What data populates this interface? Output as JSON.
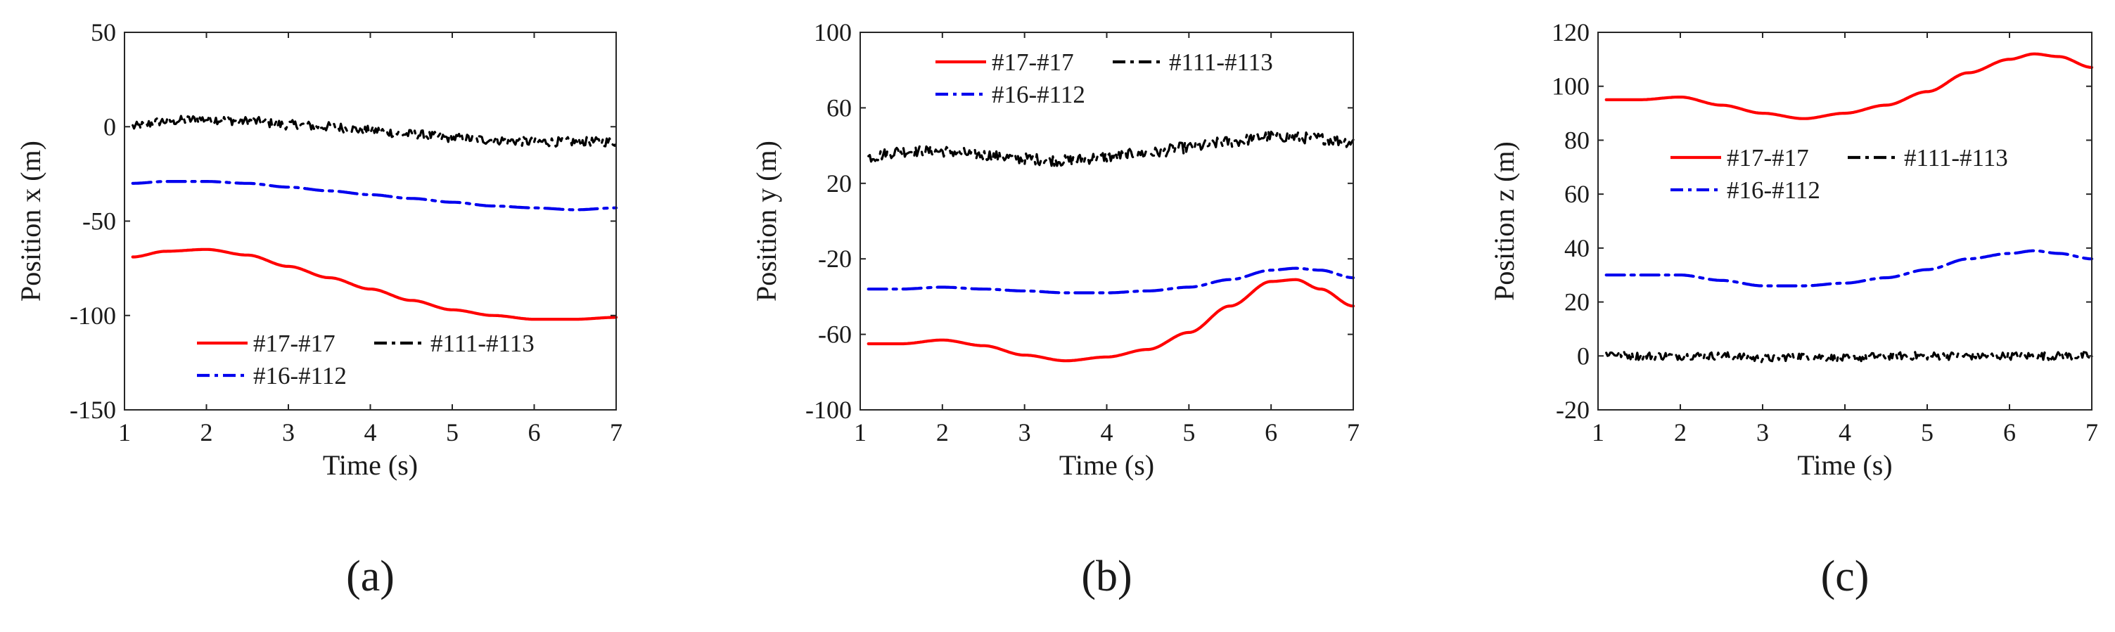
{
  "colors": {
    "red": "#ff0000",
    "black": "#000000",
    "blue": "#0000ee"
  },
  "chart_data": [
    {
      "type": "line",
      "caption": "(a)",
      "xlabel": "Time (s)",
      "ylabel": "Position x (m)",
      "xlim": [
        1,
        7
      ],
      "ylim": [
        -150,
        50
      ],
      "xticks": [
        1,
        2,
        3,
        4,
        5,
        6,
        7
      ],
      "yticks": [
        50,
        0,
        -50,
        -100,
        -150
      ],
      "legend": {
        "placement": "bottom-center",
        "rows": [
          [
            "#17-#17",
            "#111-#113"
          ],
          [
            "#16-#112"
          ]
        ]
      },
      "series": [
        {
          "name": "#17-#17",
          "color": "red",
          "style": "solid",
          "noise": 0,
          "x": [
            1.1,
            1.5,
            2.0,
            2.5,
            3.0,
            3.5,
            4.0,
            4.5,
            5.0,
            5.5,
            6.0,
            6.5,
            7.0
          ],
          "y": [
            -69,
            -66,
            -65,
            -68,
            -74,
            -80,
            -86,
            -92,
            -97,
            -100,
            -102,
            -102,
            -101
          ]
        },
        {
          "name": "#111-#113",
          "color": "black",
          "style": "dashdot",
          "noise": 2.5,
          "x": [
            1.1,
            1.5,
            2.0,
            2.5,
            3.0,
            3.5,
            4.0,
            4.5,
            5.0,
            5.5,
            6.0,
            6.5,
            7.0
          ],
          "y": [
            0,
            3,
            4,
            3,
            1,
            0,
            -2,
            -4,
            -6,
            -7,
            -8,
            -8,
            -8
          ]
        },
        {
          "name": "#16-#112",
          "color": "blue",
          "style": "dashdot",
          "noise": 0,
          "x": [
            1.1,
            1.5,
            2.0,
            2.5,
            3.0,
            3.5,
            4.0,
            4.5,
            5.0,
            5.5,
            6.0,
            6.5,
            7.0
          ],
          "y": [
            -30,
            -29,
            -29,
            -30,
            -32,
            -34,
            -36,
            -38,
            -40,
            -42,
            -43,
            -44,
            -43
          ]
        }
      ]
    },
    {
      "type": "line",
      "caption": "(b)",
      "xlabel": "Time (s)",
      "ylabel": "Position y (m)",
      "xlim": [
        1,
        7
      ],
      "ylim": [
        -100,
        100
      ],
      "xticks": [
        1,
        2,
        3,
        4,
        5,
        6,
        7
      ],
      "yticks": [
        100,
        60,
        20,
        -20,
        -60,
        -100
      ],
      "legend": {
        "placement": "top-center",
        "rows": [
          [
            "#17-#17",
            "#111-#113"
          ],
          [
            "#16-#112"
          ]
        ]
      },
      "series": [
        {
          "name": "#17-#17",
          "color": "red",
          "style": "solid",
          "noise": 0,
          "x": [
            1.1,
            1.5,
            2.0,
            2.5,
            3.0,
            3.5,
            4.0,
            4.5,
            5.0,
            5.5,
            6.0,
            6.3,
            6.6,
            7.0
          ],
          "y": [
            -65,
            -65,
            -63,
            -66,
            -71,
            -74,
            -72,
            -68,
            -59,
            -45,
            -32,
            -31,
            -36,
            -45
          ]
        },
        {
          "name": "#111-#113",
          "color": "black",
          "style": "dashdot",
          "noise": 3,
          "x": [
            1.1,
            1.5,
            2.0,
            2.5,
            3.0,
            3.5,
            4.0,
            4.5,
            5.0,
            5.5,
            6.0,
            6.5,
            7.0
          ],
          "y": [
            34,
            37,
            37,
            35,
            33,
            32,
            34,
            36,
            39,
            42,
            45,
            44,
            42
          ]
        },
        {
          "name": "#16-#112",
          "color": "blue",
          "style": "dashdot",
          "noise": 0,
          "x": [
            1.1,
            1.5,
            2.0,
            2.5,
            3.0,
            3.5,
            4.0,
            4.5,
            5.0,
            5.5,
            6.0,
            6.3,
            6.6,
            7.0
          ],
          "y": [
            -36,
            -36,
            -35,
            -36,
            -37,
            -38,
            -38,
            -37,
            -35,
            -31,
            -26,
            -25,
            -26,
            -30
          ]
        }
      ]
    },
    {
      "type": "line",
      "caption": "(c)",
      "xlabel": "Time (s)",
      "ylabel": "Position z (m)",
      "xlim": [
        1,
        7
      ],
      "ylim": [
        -20,
        120
      ],
      "xticks": [
        1,
        2,
        3,
        4,
        5,
        6,
        7
      ],
      "yticks": [
        120,
        100,
        80,
        60,
        40,
        20,
        0,
        -20
      ],
      "legend": {
        "placement": "center",
        "rows": [
          [
            "#17-#17",
            "#111-#113"
          ],
          [
            "#16-#112"
          ]
        ]
      },
      "series": [
        {
          "name": "#17-#17",
          "color": "red",
          "style": "solid",
          "noise": 0,
          "x": [
            1.1,
            1.5,
            2.0,
            2.5,
            3.0,
            3.5,
            4.0,
            4.5,
            5.0,
            5.5,
            6.0,
            6.3,
            6.6,
            7.0
          ],
          "y": [
            95,
            95,
            96,
            93,
            90,
            88,
            90,
            93,
            98,
            105,
            110,
            112,
            111,
            107
          ]
        },
        {
          "name": "#111-#113",
          "color": "black",
          "style": "dashdot",
          "noise": 1.5,
          "x": [
            1.1,
            1.5,
            2.0,
            2.5,
            3.0,
            3.5,
            4.0,
            4.5,
            5.0,
            5.5,
            6.0,
            6.5,
            7.0
          ],
          "y": [
            1,
            0,
            0,
            0,
            -1,
            0,
            -1,
            0,
            0,
            0,
            0,
            0,
            0
          ]
        },
        {
          "name": "#16-#112",
          "color": "blue",
          "style": "dashdot",
          "noise": 0,
          "x": [
            1.1,
            1.5,
            2.0,
            2.5,
            3.0,
            3.5,
            4.0,
            4.5,
            5.0,
            5.5,
            6.0,
            6.3,
            6.6,
            7.0
          ],
          "y": [
            30,
            30,
            30,
            28,
            26,
            26,
            27,
            29,
            32,
            36,
            38,
            39,
            38,
            36
          ]
        }
      ]
    }
  ]
}
